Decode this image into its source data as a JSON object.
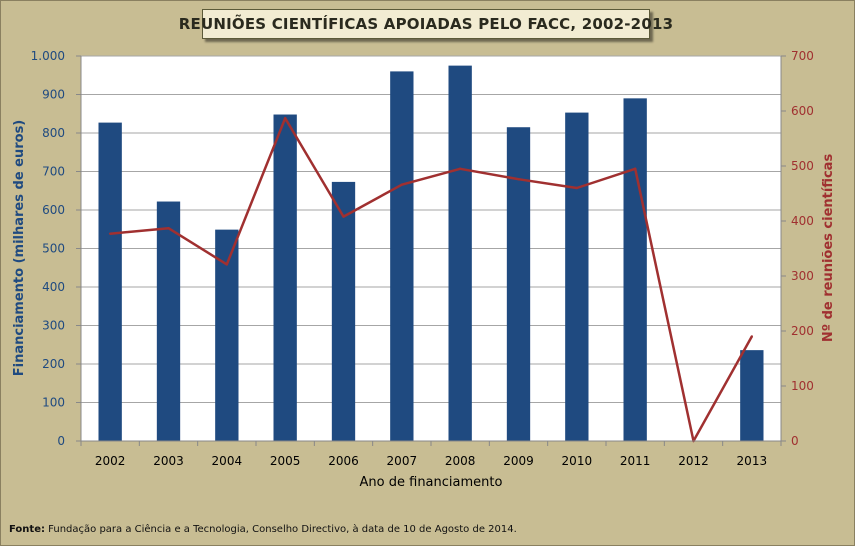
{
  "chart_data": {
    "type": "bar",
    "title": "REUNIÕES CIENTÍFICAS APOIADAS PELO FACC, 2002-2013",
    "xlabel": "Ano de financiamento",
    "ylabel": "Financiamento (milhares de euros)",
    "y2label": "Nº de reuniões científicas",
    "categories": [
      "2002",
      "2003",
      "2004",
      "2005",
      "2006",
      "2007",
      "2008",
      "2009",
      "2010",
      "2011",
      "2012",
      "2013"
    ],
    "ylim": [
      0,
      1000
    ],
    "y2lim": [
      0,
      700
    ],
    "yticks": [
      0,
      100,
      200,
      300,
      400,
      500,
      600,
      700,
      800,
      900,
      1000
    ],
    "ytick_labels": [
      "0",
      "100",
      "200",
      "300",
      "400",
      "500",
      "600",
      "700",
      "800",
      "900",
      "1.000"
    ],
    "y2ticks": [
      0,
      100,
      200,
      300,
      400,
      500,
      600,
      700
    ],
    "y2tick_labels": [
      "0",
      "100",
      "200",
      "300",
      "400",
      "500",
      "600",
      "700"
    ],
    "series": [
      {
        "type": "bar",
        "axis": "left",
        "color": "#1f4a80",
        "values": [
          827,
          622,
          549,
          848,
          673,
          960,
          975,
          815,
          853,
          890,
          0,
          236
        ]
      },
      {
        "type": "line",
        "axis": "right",
        "color": "#a03030",
        "values": [
          377,
          387,
          321,
          587,
          408,
          466,
          495,
          476,
          460,
          495,
          0,
          190
        ]
      }
    ],
    "grid": true,
    "plot_background": "#ffffff"
  },
  "source": {
    "label": "Fonte:",
    "text": " Fundação para a Ciência e a Tecnologia, Conselho Directivo, à data de 10 de Agosto de 2014."
  },
  "colors": {
    "frame_background": "#c8bd93",
    "left_axis_text": "#1f4a80",
    "right_axis_text": "#a03030"
  }
}
